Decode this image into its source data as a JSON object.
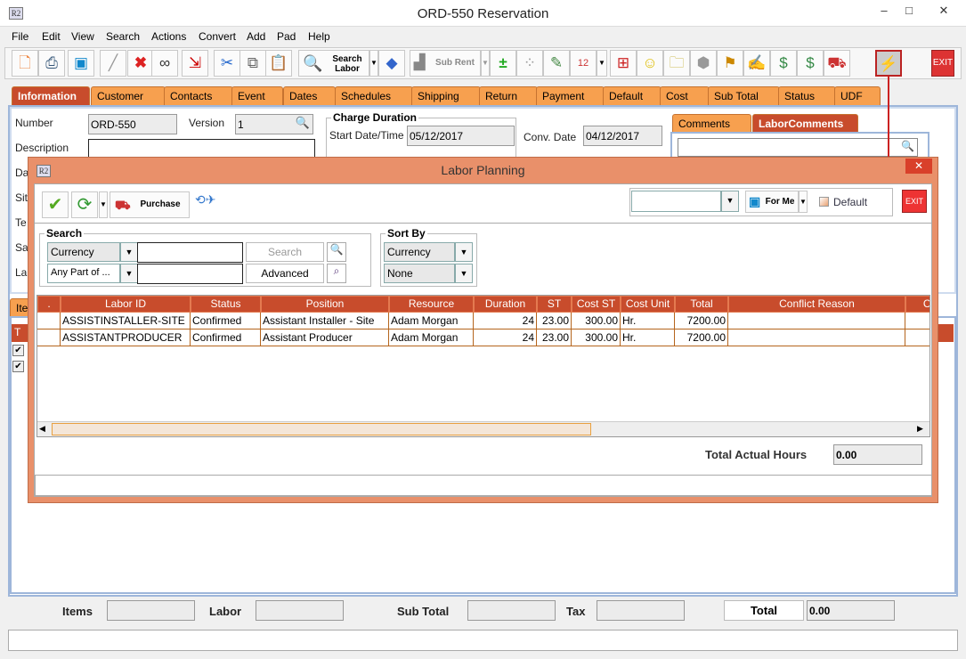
{
  "window": {
    "title": "ORD-550 Reservation",
    "logo": "R2"
  },
  "menu": [
    "File",
    "Edit",
    "View",
    "Search",
    "Actions",
    "Convert",
    "Add",
    "Pad",
    "Help"
  ],
  "toolbar": {
    "search_labor": "Search Labor",
    "sub_rent": "Sub Rent",
    "exit": "EXIT"
  },
  "tabs": [
    "Information",
    "Customer",
    "Contacts",
    "Event",
    "Dates",
    "Schedules",
    "Shipping",
    "Return",
    "Payment",
    "Default",
    "Cost",
    "Sub Total",
    "Status",
    "UDF"
  ],
  "info": {
    "number_label": "Number",
    "number": "ORD-550",
    "version_label": "Version",
    "version": "1",
    "description_label": "Description",
    "partial_labels": [
      "Da",
      "Sit",
      "Te",
      "Sa",
      "La"
    ],
    "charge_duration": "Charge Duration",
    "start_label": "Start Date/Time",
    "start": "05/12/2017",
    "conv_label": "Conv. Date",
    "conv": "04/12/2017"
  },
  "comment_tabs": [
    "Comments",
    "LaborComments"
  ],
  "items_tab": "Ite",
  "items_header": "T",
  "dialog": {
    "title": "Labor Planning",
    "logo": "R2",
    "purchase": "Purchase",
    "for_me": "For Me",
    "default_label": "Default",
    "default_checked": false,
    "exit": "EXIT",
    "search": {
      "title": "Search",
      "field": "Currency",
      "mode": "Any Part of ...",
      "search_btn": "Search",
      "advanced_btn": "Advanced"
    },
    "sort": {
      "title": "Sort By",
      "field": "Currency",
      "order": "None"
    },
    "columns": [
      ".",
      "Labor ID",
      "Status",
      "Position",
      "Resource",
      "Duration",
      "ST",
      "Cost ST",
      "Cost Unit",
      "Total",
      "Conflict Reason",
      "Co"
    ],
    "rows": [
      [
        "",
        "ASSISTINSTALLER-SITE",
        "Confirmed",
        "Assistant Installer - Site",
        "Adam Morgan",
        "24",
        "23.00",
        "300.00",
        "Hr.",
        "7200.00",
        "",
        ""
      ],
      [
        "",
        "ASSISTANTPRODUCER",
        "Confirmed",
        "Assistant Producer",
        "Adam Morgan",
        "24",
        "23.00",
        "300.00",
        "Hr.",
        "7200.00",
        "",
        ""
      ]
    ],
    "total_hours_label": "Total Actual Hours",
    "total_hours": "0.00"
  },
  "footer": {
    "items_label": "Items",
    "labor_label": "Labor",
    "subtotal_label": "Sub Total",
    "tax_label": "Tax",
    "total_label": "Total",
    "total": "0.00"
  },
  "colors": {
    "accent": "#c84c2c",
    "tab": "#f7a04f",
    "dialog": "#e9906a"
  }
}
